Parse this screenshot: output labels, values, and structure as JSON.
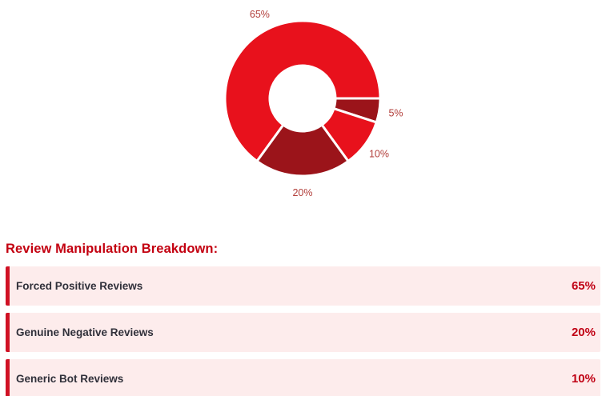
{
  "chart_data": {
    "type": "pie",
    "donut": true,
    "title": "",
    "start_angle_deg": 216,
    "clockwise": true,
    "legend": "none",
    "colors": {
      "bright_red": "#e8111c",
      "dark_red": "#9b141a",
      "slice_border": "#ffffff",
      "label_text": "#b23e3a"
    },
    "slices": [
      {
        "value": 65,
        "display_label": "65%",
        "color": "#e8111c"
      },
      {
        "value": 5,
        "display_label": "5%",
        "color": "#9b141a"
      },
      {
        "value": 10,
        "display_label": "10%",
        "color": "#e8111c"
      },
      {
        "value": 20,
        "display_label": "20%",
        "color": "#9b141a"
      }
    ]
  },
  "breakdown": {
    "heading": "Review Manipulation Breakdown:",
    "heading_color": "#c30010",
    "row_background": "#fdecec",
    "row_border_color": "#d01124",
    "value_color": "#c00014",
    "items": [
      {
        "label": "Forced Positive Reviews",
        "value_label": "65%"
      },
      {
        "label": "Genuine Negative Reviews",
        "value_label": "20%"
      },
      {
        "label": "Generic Bot Reviews",
        "value_label": "10%"
      }
    ]
  }
}
